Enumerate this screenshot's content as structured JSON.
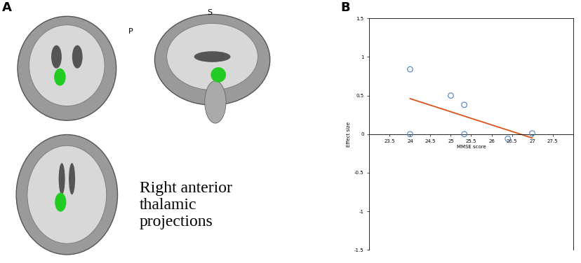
{
  "panel_labels": [
    "A",
    "B"
  ],
  "image_panel": {
    "caption": "Right anterior thalamic projections",
    "orientation_labels": [
      "S",
      "P"
    ]
  },
  "chart_data": {
    "type": "scatter",
    "x_label": "MMSE score",
    "y_label": "Effect size",
    "x": [
      24,
      24,
      25,
      25.33,
      25.33,
      26.4,
      27
    ],
    "values": [
      0.84,
      0.0,
      0.5,
      0.38,
      0.0,
      -0.06,
      0.01
    ],
    "color": "#4f81bd",
    "marker": "o",
    "fit": {
      "x": [
        24,
        27
      ],
      "values": [
        0.46,
        -0.05
      ],
      "color": "#d95319"
    },
    "xlim": [
      23,
      28
    ],
    "ylim": [
      -1.5,
      1.5
    ],
    "xticks": [
      23.5,
      24,
      24.5,
      25,
      25.5,
      26,
      26.5,
      27,
      27.5
    ],
    "yticks": [
      -1.5,
      -1,
      -0.5,
      0,
      0.5,
      1,
      1.5
    ],
    "grid": false
  }
}
